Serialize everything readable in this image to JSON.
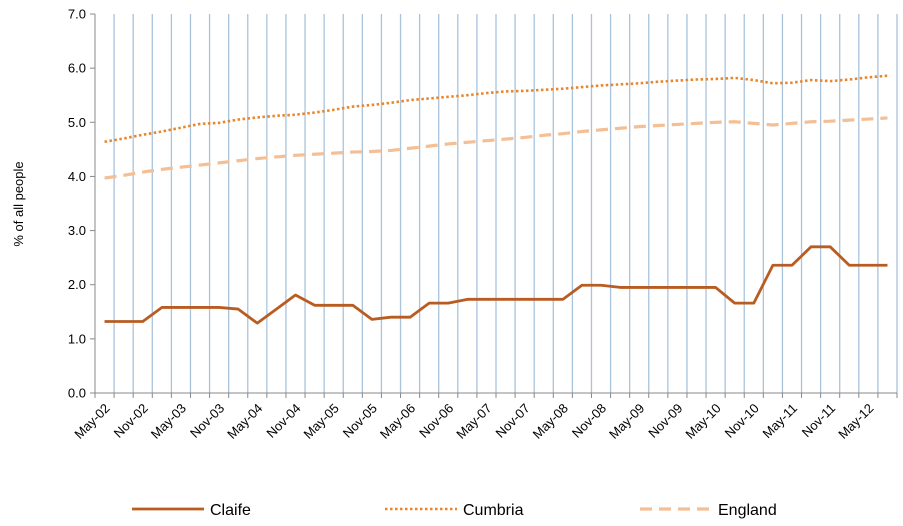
{
  "chart_data": {
    "type": "line",
    "ylabel": "% of all people",
    "xlabel": "",
    "ylim": [
      0,
      7
    ],
    "yticks": [
      "0.0",
      "1.0",
      "2.0",
      "3.0",
      "4.0",
      "5.0",
      "6.0",
      "7.0"
    ],
    "x_tick_labels": [
      "May-02",
      "Nov-02",
      "May-03",
      "Nov-03",
      "May-04",
      "Nov-04",
      "May-05",
      "Nov-05",
      "May-06",
      "Nov-06",
      "May-07",
      "Nov-07",
      "May-08",
      "Nov-08",
      "May-09",
      "Nov-09",
      "May-10",
      "Nov-10",
      "May-11",
      "Nov-11",
      "May-12"
    ],
    "x_points_per_label": 2,
    "grid": "vertical",
    "legend_position": "bottom",
    "series": [
      {
        "name": "Claife",
        "style": "solid",
        "color": "#b85c22",
        "values": [
          1.32,
          1.32,
          1.32,
          1.58,
          1.58,
          1.58,
          1.58,
          1.55,
          1.29,
          1.55,
          1.81,
          1.62,
          1.62,
          1.62,
          1.36,
          1.4,
          1.4,
          1.66,
          1.66,
          1.73,
          1.73,
          1.73,
          1.73,
          1.73,
          1.73,
          1.99,
          1.99,
          1.95,
          1.95,
          1.95,
          1.95,
          1.95,
          1.95,
          1.66,
          1.66,
          2.36,
          2.36,
          2.7,
          2.7,
          2.36,
          2.36,
          2.36
        ]
      },
      {
        "name": "Cumbria",
        "style": "dotted",
        "color": "#e8862d",
        "values": [
          4.64,
          4.7,
          4.77,
          4.83,
          4.9,
          4.97,
          4.99,
          5.05,
          5.09,
          5.12,
          5.14,
          5.18,
          5.23,
          5.29,
          5.32,
          5.36,
          5.41,
          5.44,
          5.47,
          5.5,
          5.54,
          5.57,
          5.58,
          5.6,
          5.62,
          5.65,
          5.68,
          5.7,
          5.72,
          5.75,
          5.77,
          5.79,
          5.8,
          5.82,
          5.78,
          5.72,
          5.73,
          5.78,
          5.76,
          5.79,
          5.83,
          5.86
        ]
      },
      {
        "name": "England",
        "style": "dashed",
        "color": "#f4bf94",
        "values": [
          3.97,
          4.02,
          4.08,
          4.13,
          4.17,
          4.21,
          4.25,
          4.29,
          4.33,
          4.36,
          4.39,
          4.41,
          4.43,
          4.45,
          4.46,
          4.48,
          4.52,
          4.56,
          4.6,
          4.63,
          4.66,
          4.69,
          4.72,
          4.76,
          4.79,
          4.83,
          4.86,
          4.89,
          4.92,
          4.94,
          4.96,
          4.98,
          5.0,
          5.01,
          4.98,
          4.95,
          4.98,
          5.01,
          5.02,
          5.04,
          5.06,
          5.08
        ]
      }
    ]
  }
}
